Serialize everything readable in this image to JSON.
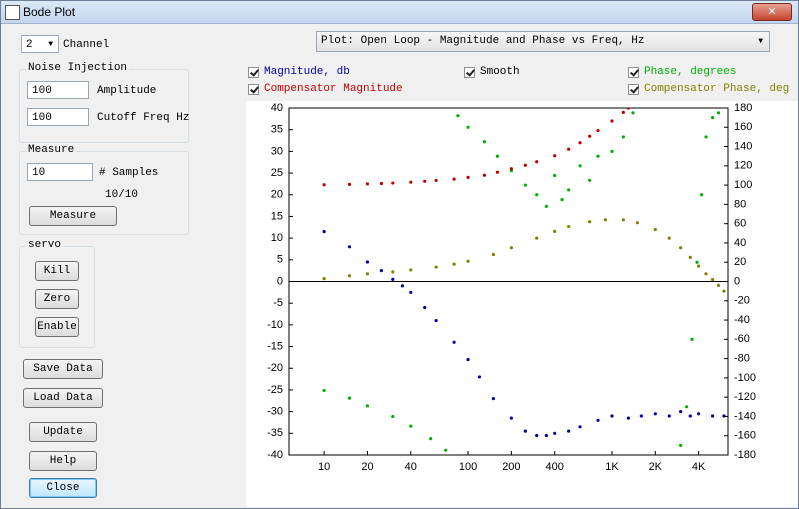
{
  "window": {
    "title": "Bode Plot"
  },
  "controls": {
    "channel": {
      "value": "2",
      "label": "Channel"
    },
    "noise_injection": {
      "title": "Noise Injection",
      "amplitude": {
        "value": "100",
        "label": "Amplitude"
      },
      "cutoff": {
        "value": "100",
        "label": "Cutoff Freq Hz"
      }
    },
    "measure": {
      "title": "Measure",
      "samples": {
        "value": "10",
        "label": "# Samples"
      },
      "progress": "10/10",
      "button": "Measure"
    },
    "servo": {
      "title": "servo",
      "buttons": [
        "Kill",
        "Zero",
        "Enable"
      ]
    },
    "buttons": [
      "Save Data",
      "Load Data",
      "Update",
      "Help",
      "Close"
    ],
    "plot_select": "Plot: Open Loop - Magnitude and Phase vs Freq, Hz",
    "smooth": {
      "label": "Smooth",
      "checked": true
    }
  },
  "chart_data": {
    "type": "scatter",
    "xscale": "log",
    "xlim": [
      5.7,
      6400
    ],
    "xticks": [
      10,
      20,
      40,
      100,
      200,
      400,
      {
        "value": 1000,
        "label": "1K"
      },
      {
        "value": 2000,
        "label": "2K"
      },
      {
        "value": 4000,
        "label": "4K"
      }
    ],
    "ylim": [
      -40,
      40
    ],
    "yticks": [
      40,
      35,
      30,
      25,
      20,
      15,
      10,
      5,
      0,
      -5,
      -10,
      -15,
      -20,
      -25,
      -30,
      -35,
      -40
    ],
    "y2lim": [
      -180,
      180
    ],
    "y2ticks": [
      180,
      160,
      140,
      120,
      100,
      80,
      60,
      40,
      20,
      0,
      -20,
      -40,
      -60,
      -80,
      -100,
      -120,
      -140,
      -160,
      -180
    ],
    "series": [
      {
        "name": "Magnitude, db",
        "color": "#0000a8",
        "checked": true,
        "x": [
          10,
          15,
          20,
          25,
          30,
          35,
          40,
          50,
          60,
          80,
          100,
          120,
          150,
          200,
          250,
          300,
          350,
          400,
          500,
          600,
          800,
          1000,
          1300,
          1600,
          2000,
          2500,
          3000,
          3500,
          4000,
          5000,
          6000
        ],
        "values": [
          11.5,
          8,
          4.5,
          2.5,
          0.5,
          -1,
          -2.5,
          -6,
          -9,
          -14,
          -18,
          -22,
          -27,
          -31.5,
          -34.5,
          -35.5,
          -35.5,
          -35,
          -34.5,
          -33.5,
          -32,
          -31,
          -31.5,
          -31,
          -30.5,
          -31,
          -30,
          -31,
          -30.5,
          -31,
          -31
        ]
      },
      {
        "name": "Phase, degrees",
        "color": "#00b000",
        "checked": true,
        "axis": "y2",
        "x": [
          10,
          15,
          20,
          30,
          40,
          55,
          70,
          85,
          100,
          130,
          160,
          200,
          250,
          300,
          350,
          400,
          450,
          500,
          600,
          700,
          800,
          1000,
          1200,
          1400,
          3000,
          3300,
          3600,
          3900,
          4200,
          4500,
          5000,
          5500
        ],
        "values": [
          -113,
          -121,
          -129,
          -140,
          -150,
          -163,
          -175,
          172,
          160,
          145,
          130,
          115,
          100,
          90,
          78,
          110,
          85,
          95,
          120,
          105,
          130,
          135,
          150,
          175,
          -170,
          -130,
          -60,
          20,
          90,
          150,
          170,
          175
        ]
      },
      {
        "name": "Compensator Magnitude",
        "color": "#c00000",
        "checked": true,
        "x": [
          10,
          15,
          20,
          25,
          30,
          40,
          50,
          60,
          80,
          100,
          130,
          160,
          200,
          250,
          300,
          400,
          500,
          600,
          700,
          800,
          1000,
          1200,
          1300
        ],
        "values": [
          22.3,
          22.4,
          22.5,
          22.6,
          22.7,
          22.9,
          23.1,
          23.3,
          23.6,
          24,
          24.5,
          25.2,
          26,
          26.8,
          27.6,
          29,
          30.5,
          32,
          33.5,
          34.8,
          37,
          39,
          40
        ]
      },
      {
        "name": "Compensator Phase, deg",
        "color": "#808000",
        "checked": true,
        "axis": "y2",
        "x": [
          10,
          15,
          20,
          30,
          40,
          60,
          80,
          100,
          150,
          200,
          300,
          400,
          500,
          700,
          900,
          1200,
          1500,
          2000,
          2500,
          3000,
          3500,
          4000,
          4500,
          5000,
          5500,
          6000
        ],
        "values": [
          3,
          6,
          8,
          10,
          12,
          15,
          18,
          21,
          28,
          35,
          45,
          52,
          57,
          62,
          64,
          64,
          61,
          54,
          45,
          35,
          25,
          16,
          8,
          2,
          -4,
          -10
        ]
      }
    ]
  }
}
